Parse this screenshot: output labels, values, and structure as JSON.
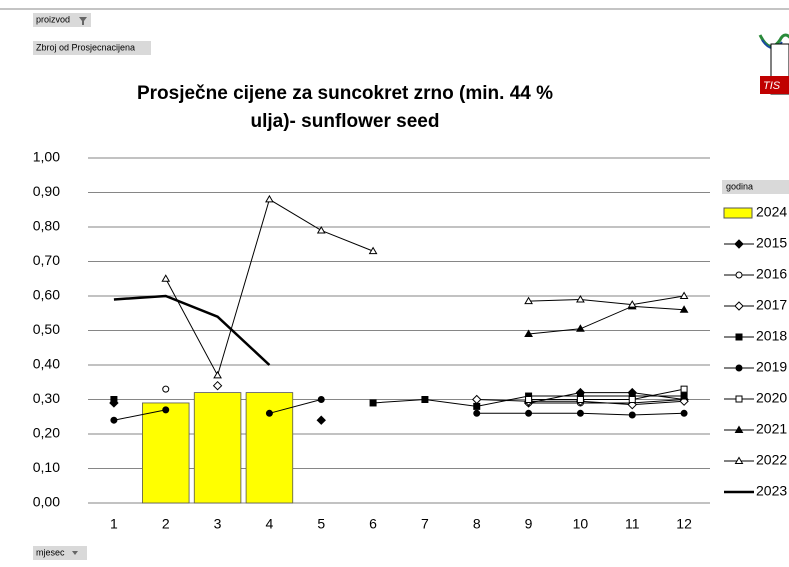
{
  "chart_data": {
    "type": "bar-line",
    "pivot_fields": {
      "filter": "proizvod",
      "data": "Zbroj od Prosjecnacijena",
      "axis": "mjesec",
      "legend": "godina"
    },
    "title": "Prosječne cijene za suncokret zrno (min. 44 % ulja)- sunflower seed",
    "categories": [
      1,
      2,
      3,
      4,
      5,
      6,
      7,
      8,
      9,
      10,
      11,
      12
    ],
    "ylim": [
      0,
      1
    ],
    "yticks": [
      {
        "value": 0,
        "label": "0,00"
      },
      {
        "value": 0.1,
        "label": "0,10"
      },
      {
        "value": 0.2,
        "label": "0,20"
      },
      {
        "value": 0.3,
        "label": "0,30"
      },
      {
        "value": 0.4,
        "label": "0,40"
      },
      {
        "value": 0.5,
        "label": "0,50"
      },
      {
        "value": 0.6,
        "label": "0,60"
      },
      {
        "value": 0.7,
        "label": "0,70"
      },
      {
        "value": 0.8,
        "label": "0,80"
      },
      {
        "value": 0.9,
        "label": "0,90"
      },
      {
        "value": 1,
        "label": "1,00"
      }
    ],
    "grid": true,
    "series": [
      {
        "name": "2024",
        "kind": "bar",
        "color": "#ffff00",
        "values": [
          null,
          0.29,
          0.32,
          0.32,
          null,
          null,
          null,
          null,
          null,
          null,
          null,
          null
        ]
      },
      {
        "name": "2015",
        "kind": "line",
        "marker": "diamond-filled",
        "color": "#000000",
        "values": [
          0.29,
          null,
          null,
          null,
          0.24,
          null,
          null,
          null,
          0.29,
          0.32,
          0.32,
          0.3
        ]
      },
      {
        "name": "2016",
        "kind": "line",
        "marker": "circle-open",
        "color": "#000000",
        "values": [
          null,
          0.33,
          null,
          null,
          null,
          null,
          null,
          null,
          0.29,
          0.29,
          0.29,
          0.3
        ]
      },
      {
        "name": "2017",
        "kind": "line",
        "marker": "diamond-open",
        "color": "#000000",
        "values": [
          null,
          null,
          0.34,
          null,
          null,
          null,
          null,
          0.3,
          0.295,
          0.295,
          0.285,
          0.295
        ]
      },
      {
        "name": "2018",
        "kind": "line",
        "marker": "square-filled",
        "color": "#000000",
        "values": [
          0.3,
          null,
          null,
          null,
          null,
          0.29,
          0.3,
          0.28,
          0.31,
          0.31,
          0.31,
          0.31
        ]
      },
      {
        "name": "2019",
        "kind": "line",
        "marker": "circle-filled",
        "color": "#000000",
        "values": [
          0.24,
          0.27,
          null,
          0.26,
          0.3,
          null,
          null,
          0.26,
          0.26,
          0.26,
          0.255,
          0.26
        ]
      },
      {
        "name": "2020",
        "kind": "line",
        "marker": "square-open",
        "color": "#000000",
        "values": [
          null,
          null,
          null,
          null,
          null,
          null,
          null,
          null,
          0.3,
          0.3,
          0.3,
          0.33
        ]
      },
      {
        "name": "2021",
        "kind": "line",
        "marker": "triangle-filled",
        "color": "#000000",
        "values": [
          null,
          null,
          null,
          null,
          null,
          null,
          null,
          null,
          0.49,
          0.505,
          0.57,
          0.56
        ]
      },
      {
        "name": "2022",
        "kind": "line",
        "marker": "triangle-open",
        "color": "#000000",
        "values": [
          null,
          0.65,
          0.37,
          0.88,
          0.79,
          0.73,
          null,
          null,
          0.585,
          0.59,
          0.575,
          0.6
        ]
      },
      {
        "name": "2023",
        "kind": "line",
        "marker": "none",
        "color": "#000000",
        "width": 2.5,
        "values": [
          0.59,
          0.6,
          0.54,
          0.4,
          null,
          null,
          null,
          null,
          null,
          null,
          null,
          null
        ]
      }
    ]
  }
}
